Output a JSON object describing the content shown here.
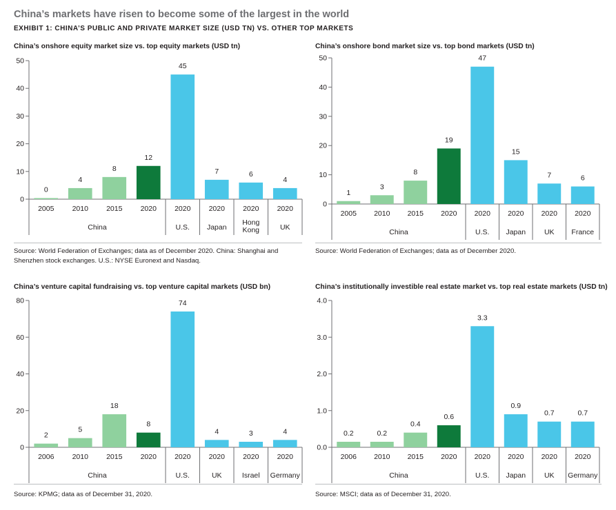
{
  "page": {
    "title": "China’s markets have risen to become some of the largest in the world",
    "exhibit": "EXHIBIT 1: CHINA’S PUBLIC AND PRIVATE MARKET SIZE (USD TN) VS. OTHER TOP MARKETS"
  },
  "colors": {
    "china_light": "#8fd19e",
    "china_dark": "#0e7a3b",
    "other": "#4ac6e8"
  },
  "chart_data": [
    {
      "type": "bar",
      "title": "China’s onshore equity market size vs. top equity markets (USD tn)",
      "categories": [
        "2005",
        "2010",
        "2015",
        "2020",
        "2020",
        "2020",
        "2020",
        "2020"
      ],
      "groups": [
        "China",
        "China",
        "China",
        "China",
        "U.S.",
        "Japan",
        "Hong Kong",
        "UK"
      ],
      "values": [
        0.4,
        4,
        8,
        12,
        45,
        7,
        6,
        4
      ],
      "labels": [
        "0",
        "4",
        "8",
        "12",
        "45",
        "7",
        "6",
        "4"
      ],
      "ylim": [
        0,
        50
      ],
      "yticks": [
        "0",
        "10",
        "20",
        "30",
        "40",
        "50"
      ],
      "source": "Source: World Federation of Exchanges; data as of December 2020. China: Shanghai and Shenzhen stock exchanges. U.S.: NYSE Euronext and Nasdaq."
    },
    {
      "type": "bar",
      "title": "China’s onshore bond market size vs. top bond markets (USD tn)",
      "categories": [
        "2005",
        "2010",
        "2015",
        "2020",
        "2020",
        "2020",
        "2020",
        "2020"
      ],
      "groups": [
        "China",
        "China",
        "China",
        "China",
        "U.S.",
        "Japan",
        "UK",
        "France"
      ],
      "values": [
        1,
        3,
        8,
        19,
        47,
        15,
        7,
        6
      ],
      "labels": [
        "1",
        "3",
        "8",
        "19",
        "47",
        "15",
        "7",
        "6"
      ],
      "ylim": [
        0,
        50
      ],
      "yticks": [
        "0",
        "10",
        "20",
        "30",
        "40",
        "50"
      ],
      "source": "Source: World Federation of Exchanges; data as of December 2020."
    },
    {
      "type": "bar",
      "title": "China’s venture capital fundraising vs. top venture capital markets (USD bn)",
      "categories": [
        "2006",
        "2010",
        "2015",
        "2020",
        "2020",
        "2020",
        "2020",
        "2020"
      ],
      "groups": [
        "China",
        "China",
        "China",
        "China",
        "U.S.",
        "UK",
        "Israel",
        "Germany"
      ],
      "values": [
        2,
        5,
        18,
        8,
        74,
        4,
        3,
        4
      ],
      "labels": [
        "2",
        "5",
        "18",
        "8",
        "74",
        "4",
        "3",
        "4"
      ],
      "ylim": [
        0,
        80
      ],
      "yticks": [
        "0",
        "20",
        "40",
        "60",
        "80"
      ],
      "source": "Source: KPMG; data as of December 31, 2020."
    },
    {
      "type": "bar",
      "title": "China’s institutionally investible real estate market vs. top real estate markets (USD tn)",
      "categories": [
        "2006",
        "2010",
        "2015",
        "2020",
        "2020",
        "2020",
        "2020",
        "2020"
      ],
      "groups": [
        "China",
        "China",
        "China",
        "China",
        "U.S.",
        "Japan",
        "UK",
        "Germany"
      ],
      "values": [
        0.15,
        0.15,
        0.4,
        0.6,
        3.3,
        0.9,
        0.7,
        0.7
      ],
      "labels": [
        "0.2",
        "0.2",
        "0.4",
        "0.6",
        "3.3",
        "0.9",
        "0.7",
        "0.7"
      ],
      "ylim": [
        0,
        4
      ],
      "yticks": [
        "0.0",
        "1.0",
        "2.0",
        "3.0",
        "4.0"
      ],
      "source": "Source: MSCI; data as of December 31, 2020."
    }
  ]
}
